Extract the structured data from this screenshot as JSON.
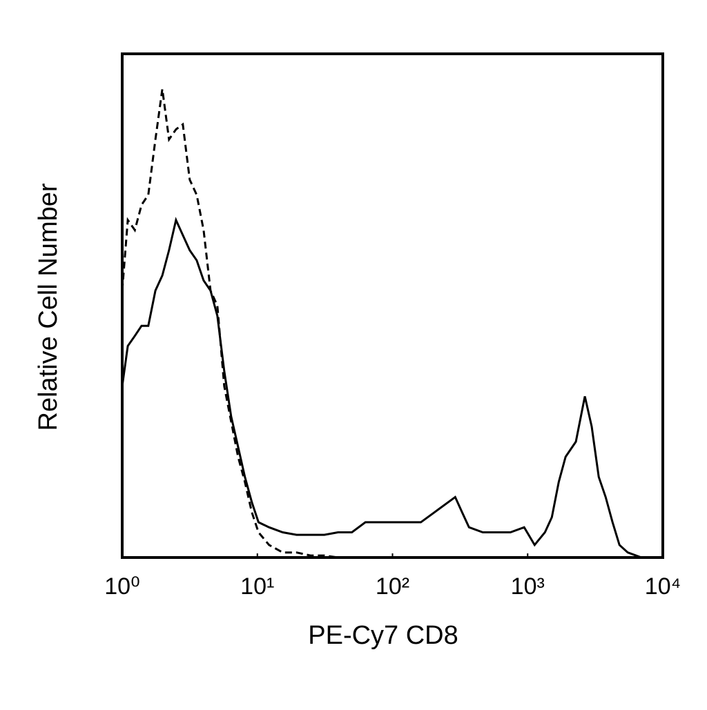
{
  "chart_data": {
    "type": "line",
    "x_label": "PE-Cy7 CD8",
    "y_label": "Relative Cell Number",
    "xscale": "log",
    "xlim": [
      1,
      10000
    ],
    "ylim": [
      0,
      100
    ],
    "xticks": [
      {
        "value": 1,
        "label": "10⁰"
      },
      {
        "value": 10,
        "label": "10¹"
      },
      {
        "value": 100,
        "label": "10²"
      },
      {
        "value": 1000,
        "label": "10³"
      },
      {
        "value": 10000,
        "label": "10⁴"
      }
    ],
    "x": [
      1,
      1.1,
      1.24,
      1.39,
      1.56,
      1.76,
      1.98,
      2.22,
      2.5,
      2.81,
      3.16,
      3.56,
      4.0,
      4.5,
      5.06,
      5.69,
      6.4,
      7.2,
      8.09,
      9.1,
      10.2,
      12.2,
      15.4,
      19.5,
      24.7,
      31.3,
      39.5,
      50,
      63,
      80,
      101,
      128,
      162,
      205,
      259,
      291,
      327,
      368,
      466,
      589,
      745,
      942,
      1125,
      1343,
      1510,
      1698,
      1909,
      2275,
      2649,
      2979,
      3357,
      3776,
      4246,
      4775,
      5500,
      6950,
      8790
    ],
    "series": [
      {
        "color": "#000000",
        "dashed": false,
        "values": [
          34,
          42,
          44,
          46,
          46,
          53,
          56,
          61,
          67,
          64,
          61,
          59,
          55,
          53,
          48,
          37,
          28,
          22,
          16,
          11,
          7,
          6,
          5,
          4.5,
          4.5,
          4.5,
          5,
          5,
          7,
          7,
          7,
          7,
          7,
          9,
          11,
          12,
          9,
          6,
          5,
          5,
          5,
          6,
          2.5,
          5,
          8,
          15,
          20,
          23,
          32,
          26,
          16,
          12,
          7,
          2.5,
          1,
          0,
          0
        ]
      },
      {
        "color": "#000000",
        "dashed": true,
        "values": [
          53,
          67,
          65,
          70,
          72,
          83,
          93,
          83,
          85,
          86,
          75,
          72,
          65,
          53,
          50,
          34,
          27,
          20,
          15,
          9,
          5,
          2.5,
          1,
          1,
          0.4,
          0.4,
          0,
          0,
          0,
          0,
          0,
          0,
          0,
          0,
          0,
          0,
          0,
          0,
          0,
          0,
          0,
          0,
          0,
          0,
          0,
          0,
          0,
          0,
          0,
          0,
          0,
          0,
          0,
          0,
          0,
          0,
          0
        ]
      }
    ]
  }
}
